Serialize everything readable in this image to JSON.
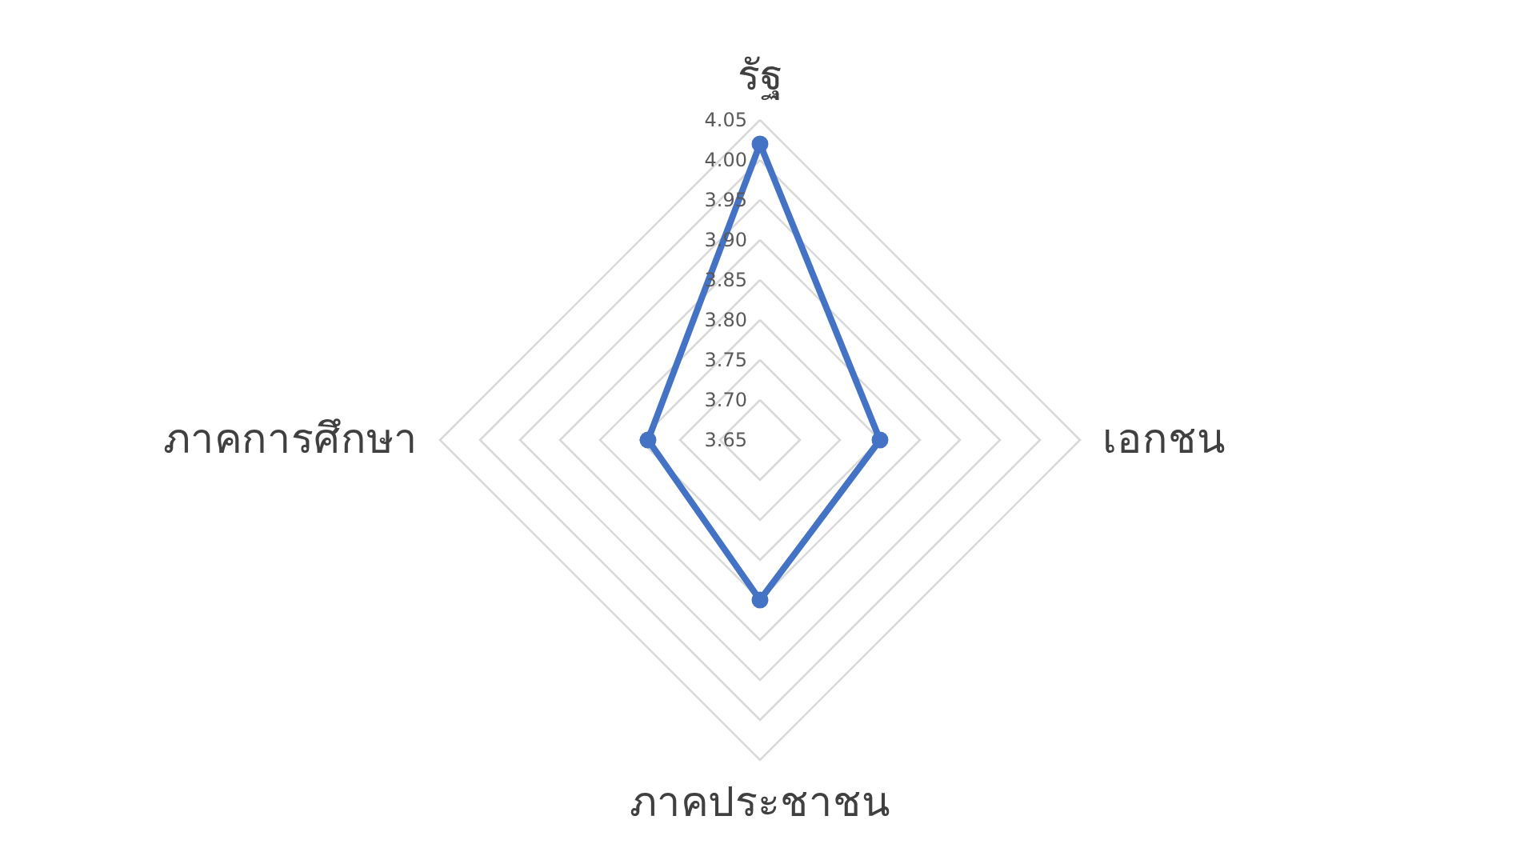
{
  "chart_data": {
    "type": "radar",
    "categories": [
      "รัฐ",
      "เอกชน",
      "ภาคประชาชน",
      "ภาคการศึกษา"
    ],
    "series": [
      {
        "color": "#4472c4",
        "values": [
          4.02,
          3.8,
          3.85,
          3.79
        ]
      }
    ],
    "ylim": [
      3.65,
      4.05
    ],
    "yticks": [
      3.65,
      {
        "value": 3.7,
        "label": "3.70"
      },
      3.75,
      {
        "value": 3.8,
        "label": "3.80"
      },
      3.85,
      {
        "value": 3.9,
        "label": "3.90"
      },
      3.95,
      {
        "value": 4.0,
        "label": "4.00"
      },
      4.05
    ],
    "grid": true,
    "marker": "circle",
    "line_style": "solid"
  }
}
